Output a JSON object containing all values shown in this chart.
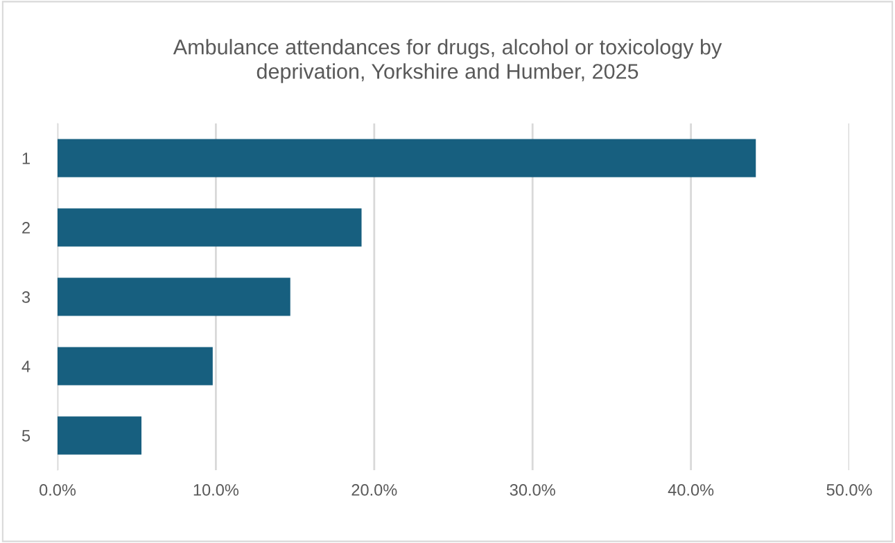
{
  "chart_data": {
    "type": "bar",
    "orientation": "horizontal",
    "title": "Ambulance attendances for drugs, alcohol or toxicology by\ndeprivation, Yorkshire and Humber, 2025",
    "categories": [
      "1",
      "2",
      "3",
      "4",
      "5"
    ],
    "values": [
      44.1,
      19.2,
      14.7,
      9.8,
      5.3
    ],
    "color": "#175f7f",
    "xlim": [
      0,
      50
    ],
    "xticks": [
      {
        "value": 0,
        "label": "0.0%"
      },
      {
        "value": 10,
        "label": "10.0%"
      },
      {
        "value": 20,
        "label": "20.0%"
      },
      {
        "value": 30,
        "label": "30.0%"
      },
      {
        "value": 40,
        "label": "40.0%"
      },
      {
        "value": 50,
        "label": "50.0%"
      }
    ],
    "grid": "x"
  }
}
